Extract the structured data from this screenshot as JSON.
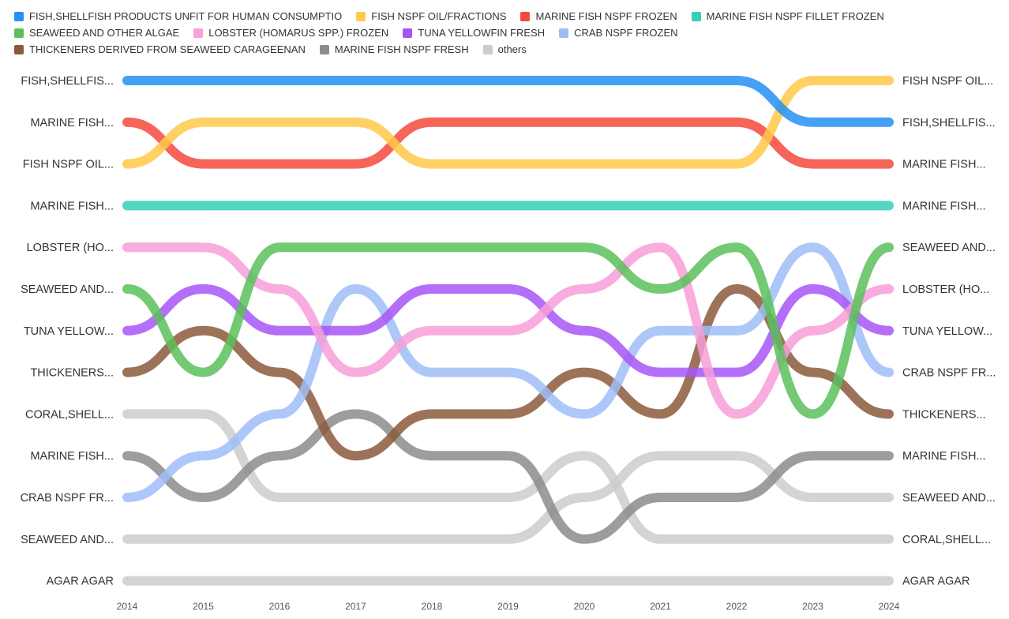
{
  "chart_data": {
    "type": "bump",
    "x": [
      2014,
      2015,
      2016,
      2017,
      2018,
      2019,
      2020,
      2021,
      2022,
      2023,
      2024
    ],
    "y_is_rank": true,
    "legend_position": "top",
    "grid": false,
    "series": [
      {
        "name": "FISH,SHELLFISH PRODUCTS UNFIT FOR HUMAN CONSUMPTIO",
        "color": "#2491f5",
        "ranks": [
          1,
          1,
          1,
          1,
          1,
          1,
          1,
          1,
          1,
          2,
          2
        ]
      },
      {
        "name": "FISH NSPF OIL/FRACTIONS",
        "color": "#ffc94a",
        "ranks": [
          3,
          2,
          2,
          2,
          3,
          3,
          3,
          3,
          3,
          1,
          1
        ]
      },
      {
        "name": "MARINE FISH NSPF FROZEN",
        "color": "#f5493d",
        "ranks": [
          2,
          3,
          3,
          3,
          2,
          2,
          2,
          2,
          2,
          3,
          3
        ]
      },
      {
        "name": "MARINE FISH NSPF FILLET FROZEN",
        "color": "#36cfb8",
        "ranks": [
          4,
          4,
          4,
          4,
          4,
          4,
          4,
          4,
          4,
          4,
          4
        ]
      },
      {
        "name": "SEAWEED AND OTHER ALGAE",
        "color": "#5cbf5c",
        "ranks": [
          6,
          8,
          5,
          5,
          5,
          5,
          5,
          6,
          5,
          9,
          5
        ]
      },
      {
        "name": "LOBSTER (HOMARUS SPP.) FROZEN",
        "color": "#f79fd8",
        "ranks": [
          5,
          5,
          6,
          8,
          7,
          7,
          6,
          5,
          9,
          7,
          6
        ]
      },
      {
        "name": "TUNA YELLOWFIN FRESH",
        "color": "#a855f7",
        "ranks": [
          7,
          6,
          7,
          7,
          6,
          6,
          7,
          8,
          8,
          6,
          7
        ]
      },
      {
        "name": "CRAB NSPF FROZEN",
        "color": "#9dbdf7",
        "ranks": [
          11,
          10,
          9,
          6,
          8,
          8,
          9,
          7,
          7,
          5,
          8
        ]
      },
      {
        "name": "THICKENERS DERIVED FROM SEAWEED CARAGEENAN",
        "color": "#8b5a3c",
        "ranks": [
          8,
          7,
          8,
          10,
          9,
          9,
          8,
          9,
          6,
          8,
          9
        ]
      },
      {
        "name": "MARINE FISH NSPF FRESH",
        "color": "#8c8c8c",
        "ranks": [
          10,
          11,
          10,
          9,
          10,
          10,
          12,
          11,
          11,
          10,
          10
        ]
      },
      {
        "name": "others",
        "color": "#cccccc",
        "ranks": [
          9,
          9,
          11,
          11,
          11,
          11,
          10,
          12,
          12,
          12,
          12
        ],
        "legend": true
      },
      {
        "name": "",
        "color": "#cccccc",
        "ranks": [
          12,
          12,
          12,
          12,
          12,
          12,
          11,
          10,
          10,
          11,
          11
        ],
        "legend": false
      },
      {
        "name": "",
        "color": "#cccccc",
        "ranks": [
          13,
          13,
          13,
          13,
          13,
          13,
          13,
          13,
          13,
          13,
          13
        ],
        "legend": false
      }
    ],
    "left_labels": [
      "FISH,SHELLFIS...",
      "MARINE FISH...",
      "FISH NSPF OIL...",
      "MARINE FISH...",
      "LOBSTER (HO...",
      "SEAWEED AND...",
      "TUNA YELLOW...",
      "THICKENERS...",
      "CORAL,SHELL...",
      "MARINE FISH...",
      "CRAB NSPF FR...",
      "SEAWEED AND...",
      "AGAR AGAR"
    ],
    "right_labels": [
      "FISH NSPF OIL...",
      "FISH,SHELLFIS...",
      "MARINE FISH...",
      "MARINE FISH...",
      "SEAWEED AND...",
      "LOBSTER (HO...",
      "TUNA YELLOW...",
      "CRAB NSPF FR...",
      "THICKENERS...",
      "MARINE FISH...",
      "SEAWEED AND...",
      "CORAL,SHELL...",
      "AGAR AGAR"
    ]
  }
}
